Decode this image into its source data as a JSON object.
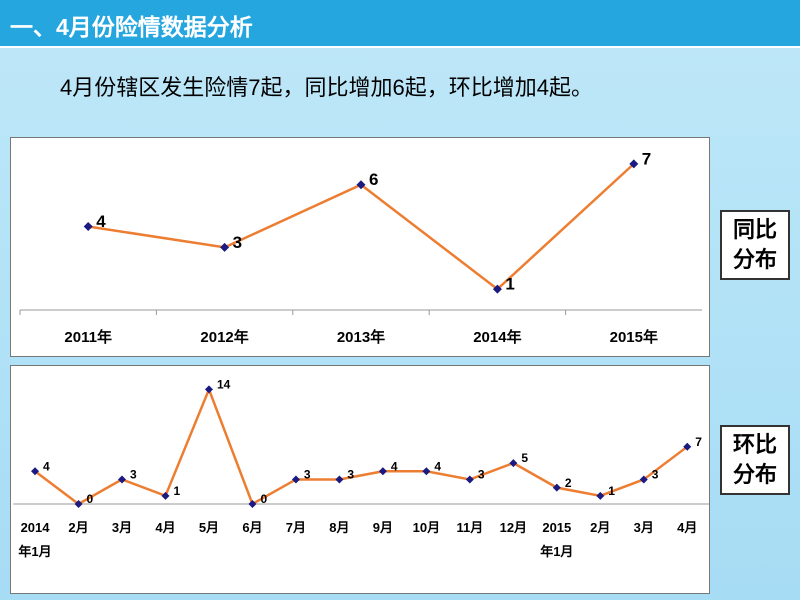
{
  "header": {
    "title": "一、4月份险情数据分析"
  },
  "summary": "4月份辖区发生险情7起，同比增加6起，环比增加4起。",
  "side_labels": [
    [
      "同比",
      "分布"
    ],
    [
      "环比",
      "分布"
    ]
  ],
  "chart_data": [
    {
      "type": "line",
      "categories": [
        "2011年",
        "2012年",
        "2013年",
        "2014年",
        "2015年"
      ],
      "values": [
        4,
        3,
        6,
        1,
        7
      ],
      "color": "#ed7d31",
      "marker_color": "#1a1a80",
      "ylim": [
        0,
        8
      ]
    },
    {
      "type": "line",
      "categories": [
        "2014年1月",
        "2月",
        "3月",
        "4月",
        "5月",
        "6月",
        "7月",
        "8月",
        "9月",
        "10月",
        "11月",
        "12月",
        "2015年1月",
        "2月",
        "3月",
        "4月"
      ],
      "values": [
        4,
        0,
        3,
        1,
        14,
        0,
        3,
        3,
        4,
        4,
        3,
        5,
        2,
        1,
        3,
        7
      ],
      "color": "#ed7d31",
      "marker_color": "#1a1a80",
      "ylim": [
        0,
        16
      ]
    }
  ]
}
